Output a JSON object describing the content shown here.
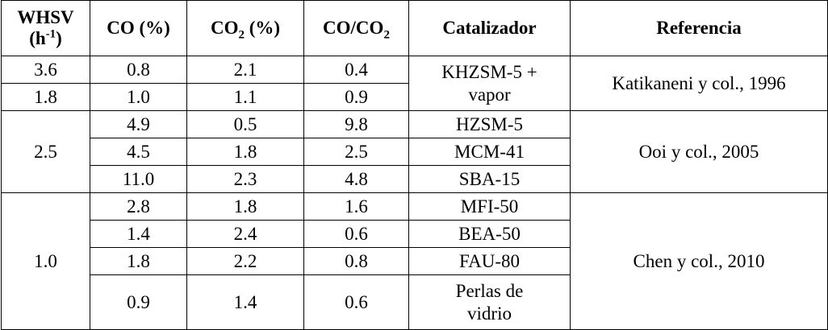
{
  "table": {
    "header": {
      "whsv": [
        "WHSV",
        "(h",
        "-1",
        ")"
      ],
      "co": "CO (%)",
      "co2": [
        "CO",
        "2",
        " (%)"
      ],
      "ratio": [
        "CO/CO",
        "2"
      ],
      "catalyst": "Catalizador",
      "reference": "Referencia"
    },
    "rows": [
      [
        "3.6",
        "0.8",
        "2.1",
        "0.4",
        "KHZSM-5 + vapor",
        "Katikaneni y col., 1996"
      ],
      [
        "1.8",
        "1.0",
        "1.1",
        "0.9"
      ],
      [
        "2.5",
        "4.9",
        "0.5",
        "9.8",
        "HZSM-5",
        "Ooi y col., 2005"
      ],
      [
        "4.5",
        "1.8",
        "2.5",
        "MCM-41"
      ],
      [
        "11.0",
        "2.3",
        "4.8",
        "SBA-15"
      ],
      [
        "1.0",
        "2.8",
        "1.8",
        "1.6",
        "MFI-50",
        "Chen y col., 2010"
      ],
      [
        "1.4",
        "2.4",
        "0.6",
        "BEA-50"
      ],
      [
        "1.8",
        "2.2",
        "0.8",
        "FAU-80"
      ],
      [
        "0.9",
        "1.4",
        "0.6",
        "Perlas de vidrio"
      ]
    ]
  }
}
